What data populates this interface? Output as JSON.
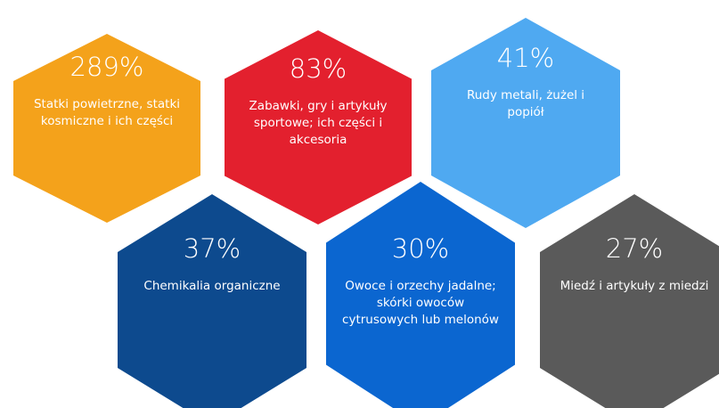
{
  "items": [
    {
      "percent": "289%",
      "label": "Statki powietrzne, statki kosmiczne i ich części",
      "color": "#f4a21b"
    },
    {
      "percent": "83%",
      "label": "Zabawki, gry i artykuły sportowe; ich części i akcesoria",
      "color": "#e3202e"
    },
    {
      "percent": "41%",
      "label": "Rudy metali, żużel i popiół",
      "color": "#4fa9f1"
    },
    {
      "percent": "37%",
      "label": "Chemikalia organiczne",
      "color": "#0d4a8e"
    },
    {
      "percent": "30%",
      "label": "Owoce i orzechy jadalne; skórki owoców cytrusowych lub melonów",
      "color": "#0b66d0"
    },
    {
      "percent": "27%",
      "label": "Miedź i artykuły z miedzi",
      "color": "#5a5a5a"
    }
  ]
}
